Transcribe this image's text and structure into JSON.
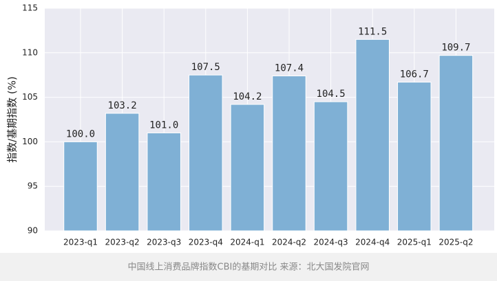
{
  "chart_data": {
    "type": "bar",
    "y_label": "指数/基期指数 (%)",
    "caption": "中国线上消费品牌指数CBI的基期对比 来源：北大国发院官网",
    "categories": [
      "2023-q1",
      "2023-q2",
      "2023-q3",
      "2023-q4",
      "2024-q1",
      "2024-q2",
      "2024-q3",
      "2024-q4",
      "2025-q1",
      "2025-q2"
    ],
    "values": [
      100.0,
      103.2,
      101.0,
      107.5,
      104.2,
      107.4,
      104.5,
      111.5,
      106.7,
      109.7
    ],
    "value_labels": [
      "100.0",
      "103.2",
      "101.0",
      "107.5",
      "104.2",
      "107.4",
      "104.5",
      "111.5",
      "106.7",
      "109.7"
    ],
    "color": "#7fb0d5",
    "ylim": [
      90,
      115
    ],
    "yticks": [
      90,
      95,
      100,
      105,
      110,
      115
    ],
    "grid": true
  }
}
